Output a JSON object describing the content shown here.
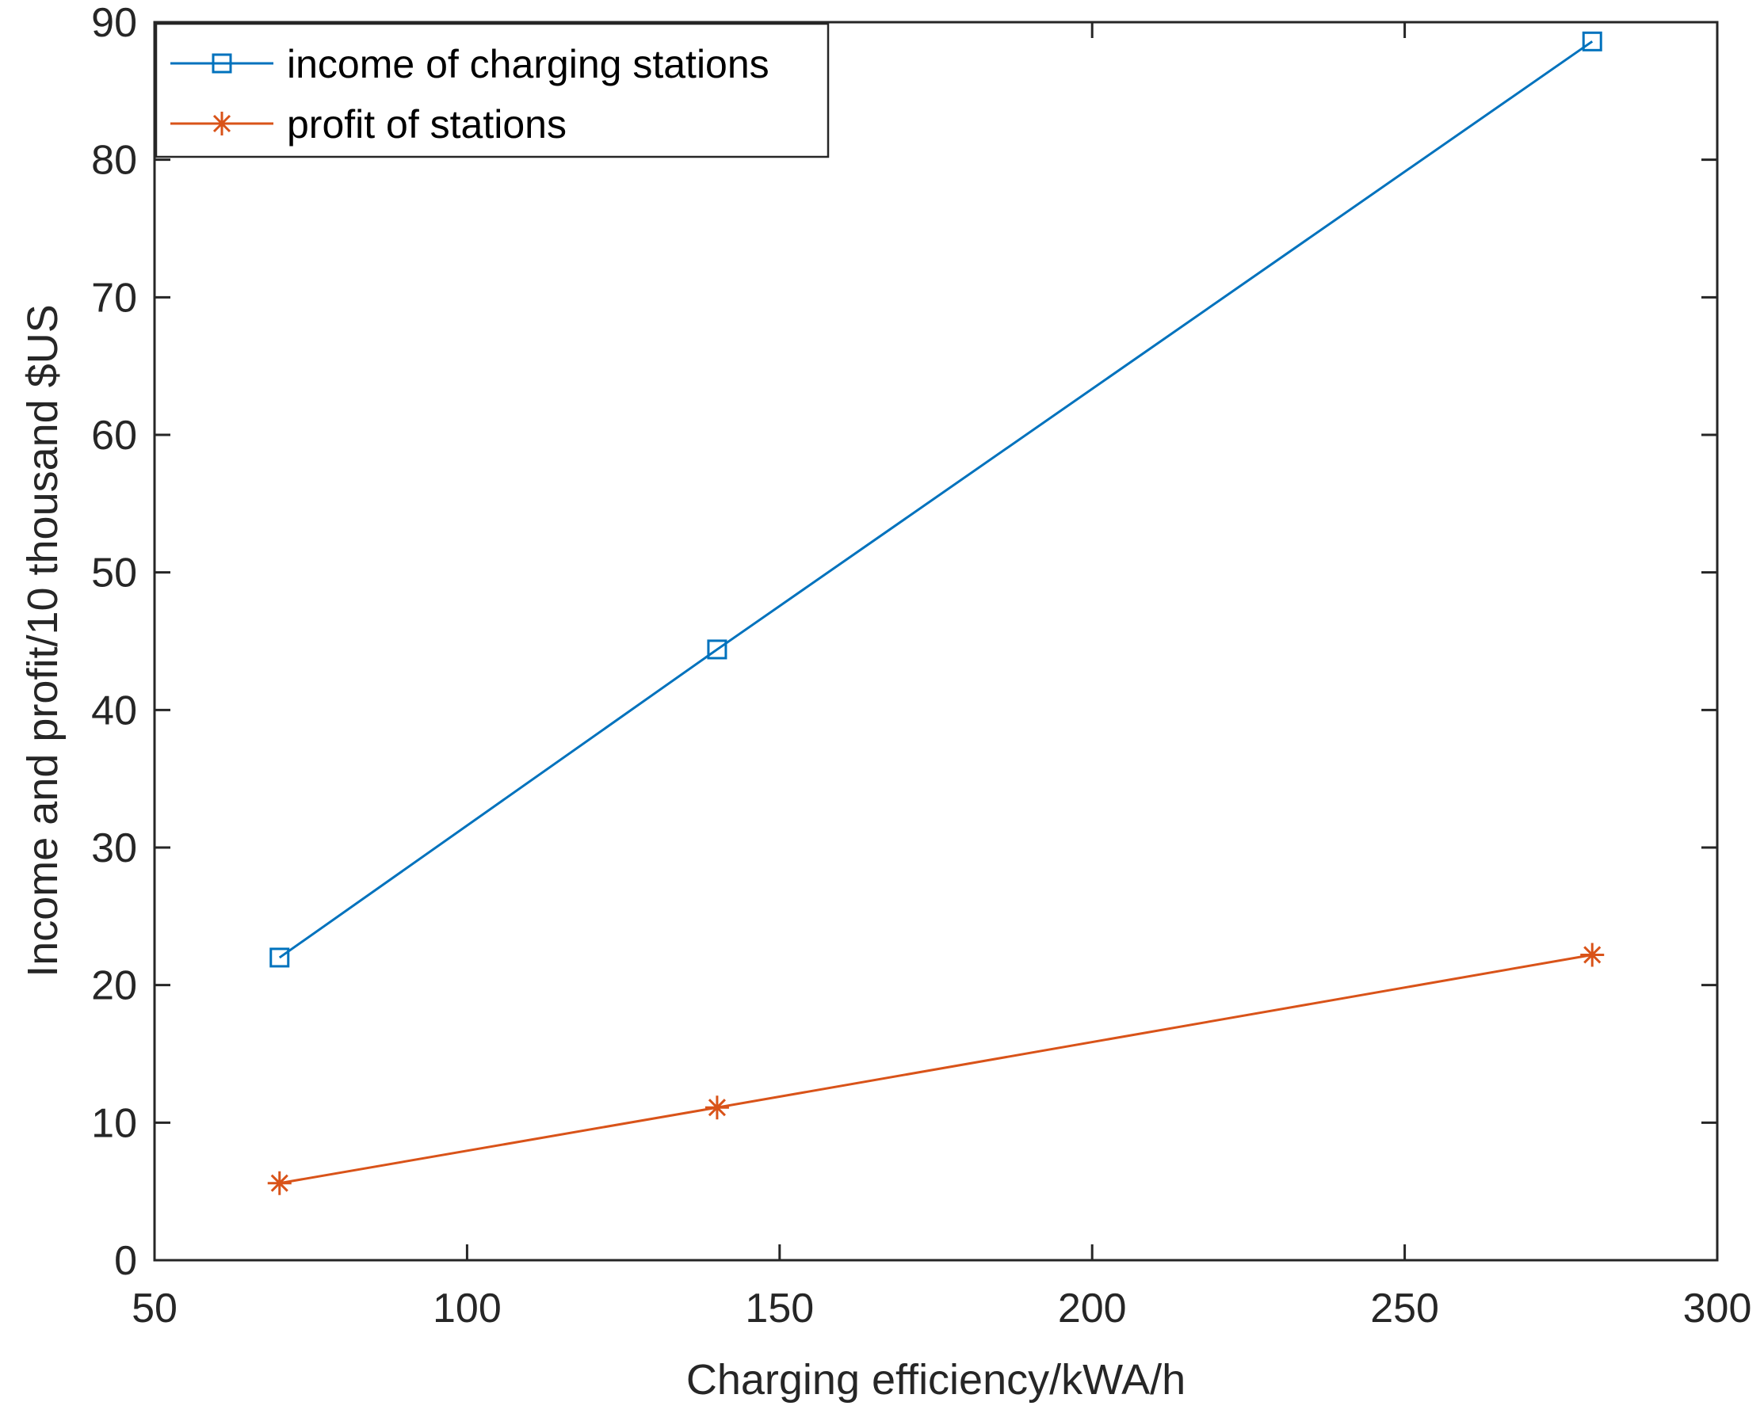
{
  "chart_data": {
    "type": "line",
    "title": "",
    "xlabel": "Charging efficiency/kWA/h",
    "ylabel": "Income and profit/10 thousand $US",
    "xlim": [
      50,
      300
    ],
    "ylim": [
      0,
      90
    ],
    "xticks": [
      "50",
      "100",
      "150",
      "200",
      "250",
      "300"
    ],
    "yticks": [
      "0",
      "10",
      "20",
      "30",
      "40",
      "50",
      "60",
      "70",
      "80",
      "90"
    ],
    "grid": false,
    "legend_position": "top-left",
    "series": [
      {
        "name": "income of charging stations",
        "marker": "square",
        "color": "#0072BD",
        "x": [
          70,
          140,
          280
        ],
        "y": [
          22.0,
          44.4,
          88.6
        ]
      },
      {
        "name": "profit of stations",
        "marker": "star",
        "color": "#D95319",
        "x": [
          70,
          140,
          280
        ],
        "y": [
          5.6,
          11.1,
          22.2
        ]
      }
    ]
  }
}
